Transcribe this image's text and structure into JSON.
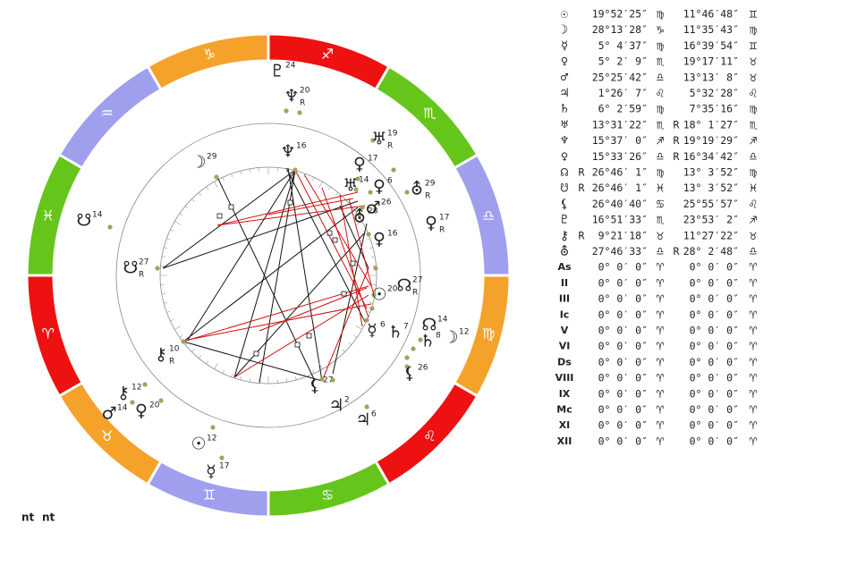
{
  "zodiac_ring": [
    "♎",
    "♏",
    "♐",
    "♑",
    "♒",
    "♓",
    "♈",
    "♉",
    "♊",
    "♋",
    "♌",
    "♍"
  ],
  "wheel_labels": [
    {
      "glyph": "♇",
      "degree": 24
    },
    {
      "glyph": "♆",
      "degree": 20,
      "retro": "R"
    },
    {
      "glyph": "♅",
      "degree": 19,
      "retro": "R"
    },
    {
      "glyph": "⛢",
      "degree": 29,
      "retro": "R"
    },
    {
      "glyph": "♀",
      "degree": 17,
      "retro": "R"
    },
    {
      "glyph": "☊",
      "degree": 14
    },
    {
      "glyph": "☽",
      "degree": 12
    },
    {
      "glyph": "♄",
      "degree": 8
    },
    {
      "glyph": "⚸",
      "degree": 26
    },
    {
      "glyph": "♃",
      "degree": 6
    },
    {
      "glyph": "☿",
      "degree": 17
    },
    {
      "glyph": "☉",
      "degree": 12
    },
    {
      "glyph": "♀",
      "degree": 20
    },
    {
      "glyph": "⚷",
      "degree": 12
    },
    {
      "glyph": "♂",
      "degree": 14
    },
    {
      "glyph": "☋",
      "degree": 14
    },
    {
      "glyph": "☽",
      "degree": 29
    },
    {
      "glyph": "♆",
      "degree": 16
    },
    {
      "glyph": "♀",
      "degree": 17
    },
    {
      "glyph": "♅",
      "degree": 14
    },
    {
      "glyph": "♀",
      "degree": 6
    },
    {
      "glyph": "♂",
      "degree": 26
    },
    {
      "glyph": "⛢",
      "degree": 28
    },
    {
      "glyph": "♀",
      "degree": 16
    },
    {
      "glyph": "☊",
      "degree": 27,
      "retro": "R"
    },
    {
      "glyph": "☉",
      "degree": 20
    },
    {
      "glyph": "☿",
      "degree": 6
    },
    {
      "glyph": "♄",
      "degree": 7
    },
    {
      "glyph": "⚷",
      "degree": 10,
      "retro": "R"
    },
    {
      "glyph": "⚸",
      "degree": 27
    },
    {
      "glyph": "♃",
      "degree": 2
    },
    {
      "glyph": "☋",
      "degree": 27,
      "retro": "R"
    }
  ],
  "positions_table": {
    "rows": [
      [
        "☉",
        "",
        "19°52′25″",
        "♍",
        "",
        "11°46′48″",
        "♊"
      ],
      [
        "☽",
        "",
        "28°13′28″",
        "♑",
        "",
        "11°35′43″",
        "♍"
      ],
      [
        "☿",
        "",
        "5° 4′37″",
        "♍",
        "",
        "16°39′54″",
        "♊"
      ],
      [
        "♀",
        "",
        "5° 2′ 9″",
        "♏",
        "",
        "19°17′11″",
        "♉"
      ],
      [
        "♂",
        "",
        "25°25′42″",
        "♎",
        "",
        "13°13′ 8″",
        "♉"
      ],
      [
        "♃",
        "",
        "1°26′ 7″",
        "♌",
        "",
        "5°32′28″",
        "♌"
      ],
      [
        "♄",
        "",
        "6° 2′59″",
        "♍",
        "",
        "7°35′16″",
        "♍"
      ],
      [
        "♅",
        "",
        "13°31′22″",
        "♏",
        "R",
        "18° 1′27″",
        "♏"
      ],
      [
        "♆",
        "",
        "15°37′ 0″",
        "♐",
        "R",
        "19°19′29″",
        "♐"
      ],
      [
        "♀",
        "",
        "15°33′26″",
        "♎",
        "R",
        "16°34′42″",
        "♎"
      ],
      [
        "☊",
        "R",
        "26°46′ 1″",
        "♍",
        "",
        "13° 3′52″",
        "♍"
      ],
      [
        "☋",
        "R",
        "26°46′ 1″",
        "♓",
        "",
        "13° 3′52″",
        "♓"
      ],
      [
        "⚸",
        "",
        "26°40′40″",
        "♋",
        "",
        "25°55′57″",
        "♌"
      ],
      [
        "♇",
        "",
        "16°51′33″",
        "♏",
        "",
        "23°53′ 2″",
        "♐"
      ],
      [
        "⚷",
        "R",
        "9°21′18″",
        "♉",
        "",
        "11°27′22″",
        "♉"
      ],
      [
        "⛢",
        "",
        "27°46′33″",
        "♎",
        "R",
        "28° 2′48″",
        "♎"
      ],
      [
        "As",
        "",
        "0° 0′ 0″",
        "♈",
        "",
        "0° 0′ 0″",
        "♈"
      ],
      [
        "II",
        "",
        "0° 0′ 0″",
        "♈",
        "",
        "0° 0′ 0″",
        "♈"
      ],
      [
        "III",
        "",
        "0° 0′ 0″",
        "♈",
        "",
        "0° 0′ 0″",
        "♈"
      ],
      [
        "Ic",
        "",
        "0° 0′ 0″",
        "♈",
        "",
        "0° 0′ 0″",
        "♈"
      ],
      [
        "V",
        "",
        "0° 0′ 0″",
        "♈",
        "",
        "0° 0′ 0″",
        "♈"
      ],
      [
        "VI",
        "",
        "0° 0′ 0″",
        "♈",
        "",
        "0° 0′ 0″",
        "♈"
      ],
      [
        "Ds",
        "",
        "0° 0′ 0″",
        "♈",
        "",
        "0° 0′ 0″",
        "♈"
      ],
      [
        "VIII",
        "",
        "0° 0′ 0″",
        "♈",
        "",
        "0° 0′ 0″",
        "♈"
      ],
      [
        "IX",
        "",
        "0° 0′ 0″",
        "♈",
        "",
        "0° 0′ 0″",
        "♈"
      ],
      [
        "Mc",
        "",
        "0° 0′ 0″",
        "♈",
        "",
        "0° 0′ 0″",
        "♈"
      ],
      [
        "XI",
        "",
        "0° 0′ 0″",
        "♈",
        "",
        "0° 0′ 0″",
        "♈"
      ],
      [
        "XII",
        "",
        "0° 0′ 0″",
        "♈",
        "",
        "0° 0′ 0″",
        "♈"
      ]
    ]
  },
  "footer": [
    "nt",
    "nt"
  ]
}
